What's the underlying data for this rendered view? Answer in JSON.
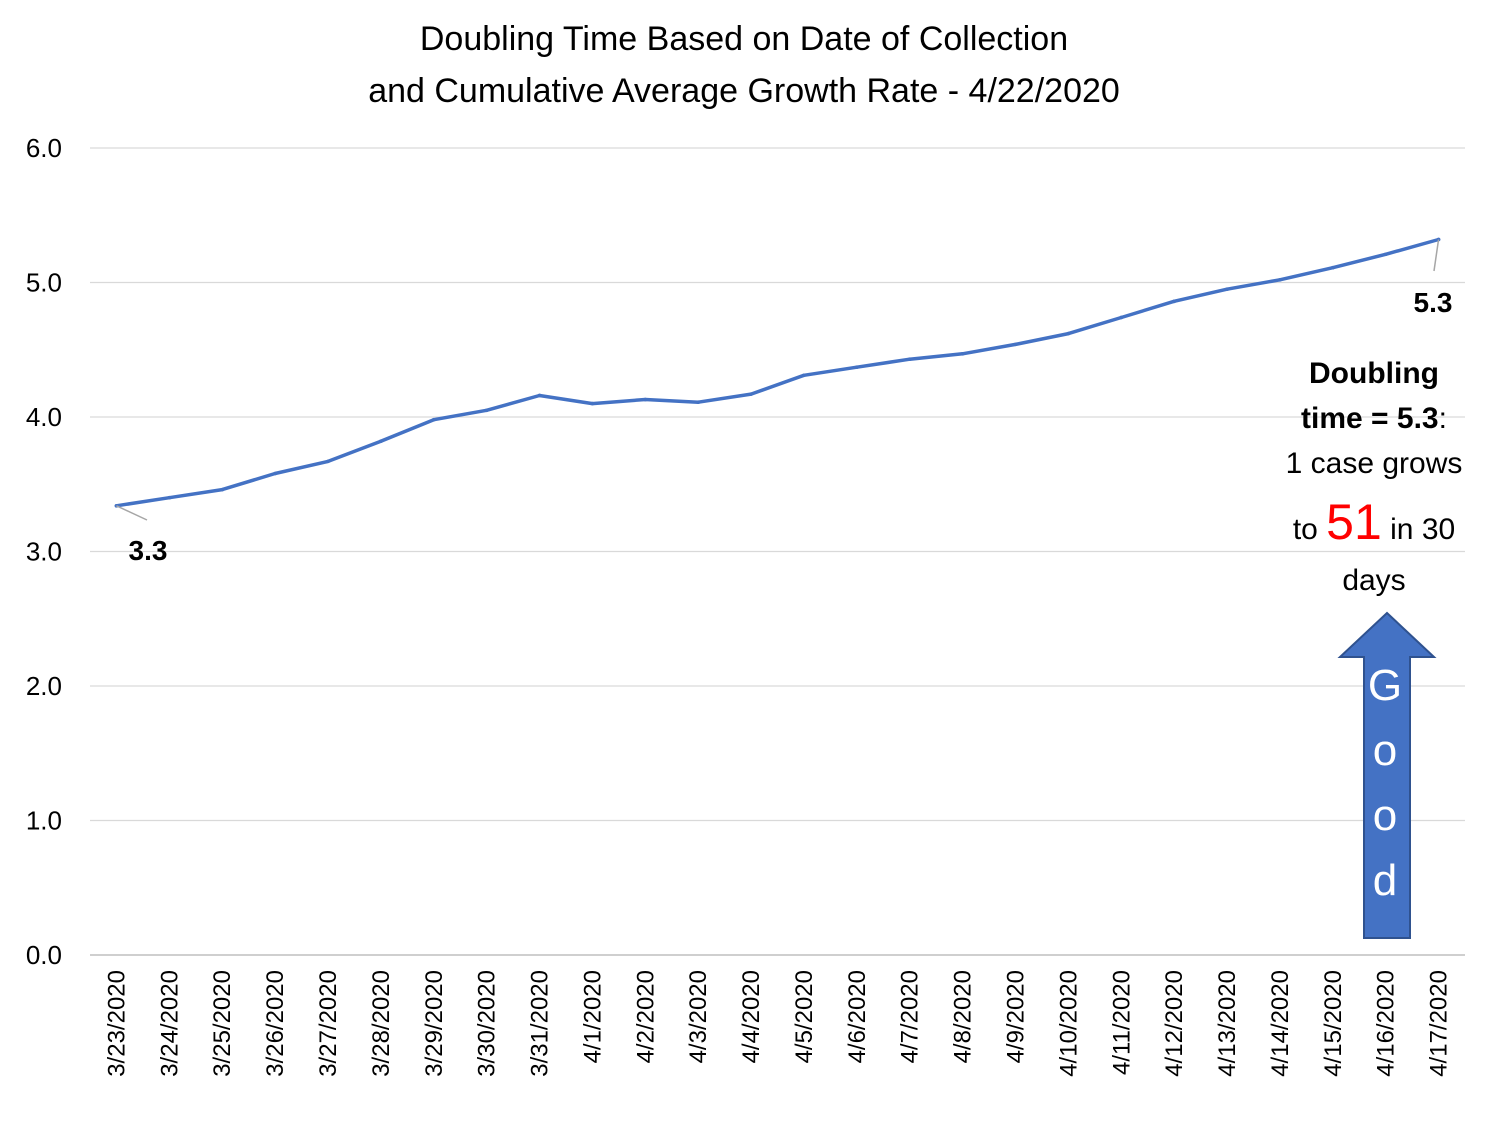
{
  "chart_data": {
    "type": "line",
    "title": [
      "Doubling Time Based on Date of Collection",
      "and Cumulative Average Growth Rate  - 4/22/2020"
    ],
    "xlabel": "",
    "ylabel": "",
    "ylim": [
      0,
      6
    ],
    "yticks": [
      "0.0",
      "1.0",
      "2.0",
      "3.0",
      "4.0",
      "5.0",
      "6.0"
    ],
    "grid": true,
    "categories": [
      "3/23/2020",
      "3/24/2020",
      "3/25/2020",
      "3/26/2020",
      "3/27/2020",
      "3/28/2020",
      "3/29/2020",
      "3/30/2020",
      "3/31/2020",
      "4/1/2020",
      "4/2/2020",
      "4/3/2020",
      "4/4/2020",
      "4/5/2020",
      "4/6/2020",
      "4/7/2020",
      "4/8/2020",
      "4/9/2020",
      "4/10/2020",
      "4/11/2020",
      "4/12/2020",
      "4/13/2020",
      "4/14/2020",
      "4/15/2020",
      "4/16/2020",
      "4/17/2020"
    ],
    "series": [
      {
        "color": "#4472C4",
        "values": [
          3.34,
          3.4,
          3.46,
          3.58,
          3.67,
          3.82,
          3.98,
          4.05,
          4.16,
          4.1,
          4.13,
          4.11,
          4.17,
          4.31,
          4.37,
          4.43,
          4.47,
          4.54,
          4.62,
          4.74,
          4.86,
          4.95,
          5.02,
          5.11,
          5.21,
          5.32
        ]
      }
    ],
    "data_labels": {
      "start": "3.3",
      "end": "5.3"
    }
  },
  "annotation": {
    "line1": "Doubling",
    "line2_bold": "time = 5.3",
    "line2_rest": ":",
    "line3": "1 case grows",
    "line4_pre": "to ",
    "line4_num": "51",
    "line4_post": " in 30",
    "line5": "days",
    "num_color": "#FF0000"
  },
  "arrow": {
    "letters": [
      "G",
      "o",
      "o",
      "d"
    ],
    "color": "#4472C4",
    "border_color": "#2F528F"
  }
}
